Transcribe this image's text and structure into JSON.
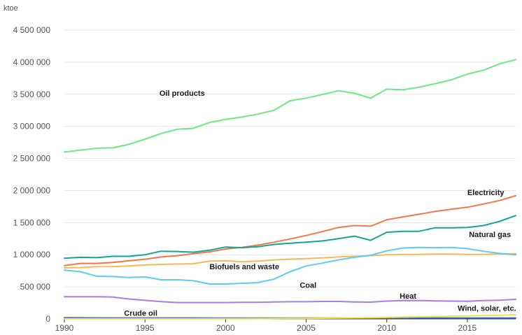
{
  "chart_data": {
    "type": "line",
    "title": "",
    "unit_label": "ktoe",
    "xlabel": "",
    "ylabel": "",
    "xlim": [
      1990,
      2018
    ],
    "ylim": [
      0,
      4500000
    ],
    "grid": true,
    "legend": "none (labels placed next to series)",
    "y_ticks": [
      {
        "value": 0,
        "label": "0"
      },
      {
        "value": 500000,
        "label": "500 000"
      },
      {
        "value": 1000000,
        "label": "1 000 000"
      },
      {
        "value": 1500000,
        "label": "1 500 000"
      },
      {
        "value": 2000000,
        "label": "2 000 000"
      },
      {
        "value": 2500000,
        "label": "2 500 000"
      },
      {
        "value": 3000000,
        "label": "3 000 000"
      },
      {
        "value": 3500000,
        "label": "3 500 000"
      },
      {
        "value": 4000000,
        "label": "4 000 000"
      },
      {
        "value": 4500000,
        "label": "4 500 000"
      }
    ],
    "x_ticks": [
      {
        "value": 1990,
        "label": "1990"
      },
      {
        "value": 1995,
        "label": "1995"
      },
      {
        "value": 2000,
        "label": "2000"
      },
      {
        "value": 2005,
        "label": "2005"
      },
      {
        "value": 2010,
        "label": "2010"
      },
      {
        "value": 2015,
        "label": "2015"
      }
    ],
    "x": [
      1990,
      1991,
      1992,
      1993,
      1994,
      1995,
      1996,
      1997,
      1998,
      1999,
      2000,
      2001,
      2002,
      2003,
      2004,
      2005,
      2006,
      2007,
      2008,
      2009,
      2010,
      2011,
      2012,
      2013,
      2014,
      2015,
      2016,
      2017,
      2018
    ],
    "series": [
      {
        "name": "Oil products",
        "color": "#6ee87f",
        "label_at": [
          1995.9,
          3520000
        ],
        "values": [
          2600000,
          2630000,
          2660000,
          2665000,
          2720000,
          2800000,
          2890000,
          2955000,
          2970000,
          3060000,
          3110000,
          3145000,
          3190000,
          3250000,
          3400000,
          3440000,
          3495000,
          3555000,
          3515000,
          3440000,
          3580000,
          3570000,
          3610000,
          3665000,
          3725000,
          3815000,
          3875000,
          3975000,
          4040000
        ]
      },
      {
        "name": "Electricity",
        "color": "#f5764a",
        "label_at": [
          2015,
          1970000
        ],
        "values": [
          830000,
          865000,
          865000,
          880000,
          905000,
          930000,
          965000,
          985000,
          1015000,
          1045000,
          1090000,
          1115000,
          1150000,
          1195000,
          1245000,
          1300000,
          1360000,
          1425000,
          1455000,
          1445000,
          1545000,
          1590000,
          1630000,
          1675000,
          1710000,
          1740000,
          1790000,
          1845000,
          1920000
        ]
      },
      {
        "name": "Natural gas",
        "color": "#13a693",
        "label_at": [
          2015.1,
          1320000
        ],
        "values": [
          945000,
          960000,
          955000,
          975000,
          975000,
          1000000,
          1055000,
          1050000,
          1040000,
          1070000,
          1120000,
          1110000,
          1125000,
          1160000,
          1180000,
          1195000,
          1215000,
          1250000,
          1290000,
          1225000,
          1350000,
          1365000,
          1365000,
          1420000,
          1420000,
          1425000,
          1455000,
          1520000,
          1610000
        ]
      },
      {
        "name": "Biofuels and waste",
        "color": "#f7b955",
        "label_at": [
          1999,
          815000
        ],
        "values": [
          795000,
          800000,
          815000,
          815000,
          825000,
          840000,
          850000,
          855000,
          860000,
          900000,
          905000,
          890000,
          900000,
          920000,
          930000,
          940000,
          950000,
          965000,
          975000,
          985000,
          1000000,
          1005000,
          1005000,
          1010000,
          1010000,
          1005000,
          1005000,
          1010000,
          1015000
        ]
      },
      {
        "name": "Coal",
        "color": "#5bcdf0",
        "label_at": [
          2004.6,
          530000
        ],
        "values": [
          760000,
          735000,
          665000,
          660000,
          645000,
          655000,
          610000,
          610000,
          595000,
          545000,
          545000,
          555000,
          565000,
          620000,
          735000,
          825000,
          870000,
          920000,
          960000,
          990000,
          1060000,
          1105000,
          1115000,
          1110000,
          1115000,
          1095000,
          1055000,
          1020000,
          1000000
        ]
      },
      {
        "name": "Heat",
        "color": "#a87ee5",
        "label_at": [
          2010.8,
          360000
        ],
        "values": [
          345000,
          345000,
          345000,
          340000,
          310000,
          290000,
          270000,
          255000,
          255000,
          255000,
          255000,
          258000,
          258000,
          265000,
          268000,
          268000,
          272000,
          272000,
          265000,
          262000,
          278000,
          285000,
          288000,
          280000,
          278000,
          275000,
          285000,
          292000,
          305000
        ]
      },
      {
        "name": "Crude oil",
        "color": "#2d63c9",
        "label_at": [
          1993.7,
          90000
        ],
        "values": [
          18000,
          17000,
          16000,
          15000,
          15000,
          15000,
          15000,
          15000,
          15000,
          14000,
          14000,
          14000,
          14000,
          14000,
          14000,
          14000,
          14000,
          14000,
          14000,
          14000,
          14000,
          13000,
          13000,
          13000,
          13000,
          13000,
          13000,
          13000,
          13000
        ]
      },
      {
        "name": "Wind, solar, etc.",
        "color": "#f2e04a",
        "label_at": [
          2014.4,
          170000
        ],
        "values": [
          2000,
          2000,
          2000,
          2000,
          2000,
          2000,
          2000,
          2000,
          3000,
          3000,
          4000,
          4000,
          5000,
          6000,
          8000,
          9000,
          11000,
          13000,
          16000,
          19000,
          23000,
          28000,
          33000,
          38000,
          42000,
          46000,
          52000,
          58000,
          66000
        ]
      }
    ]
  }
}
